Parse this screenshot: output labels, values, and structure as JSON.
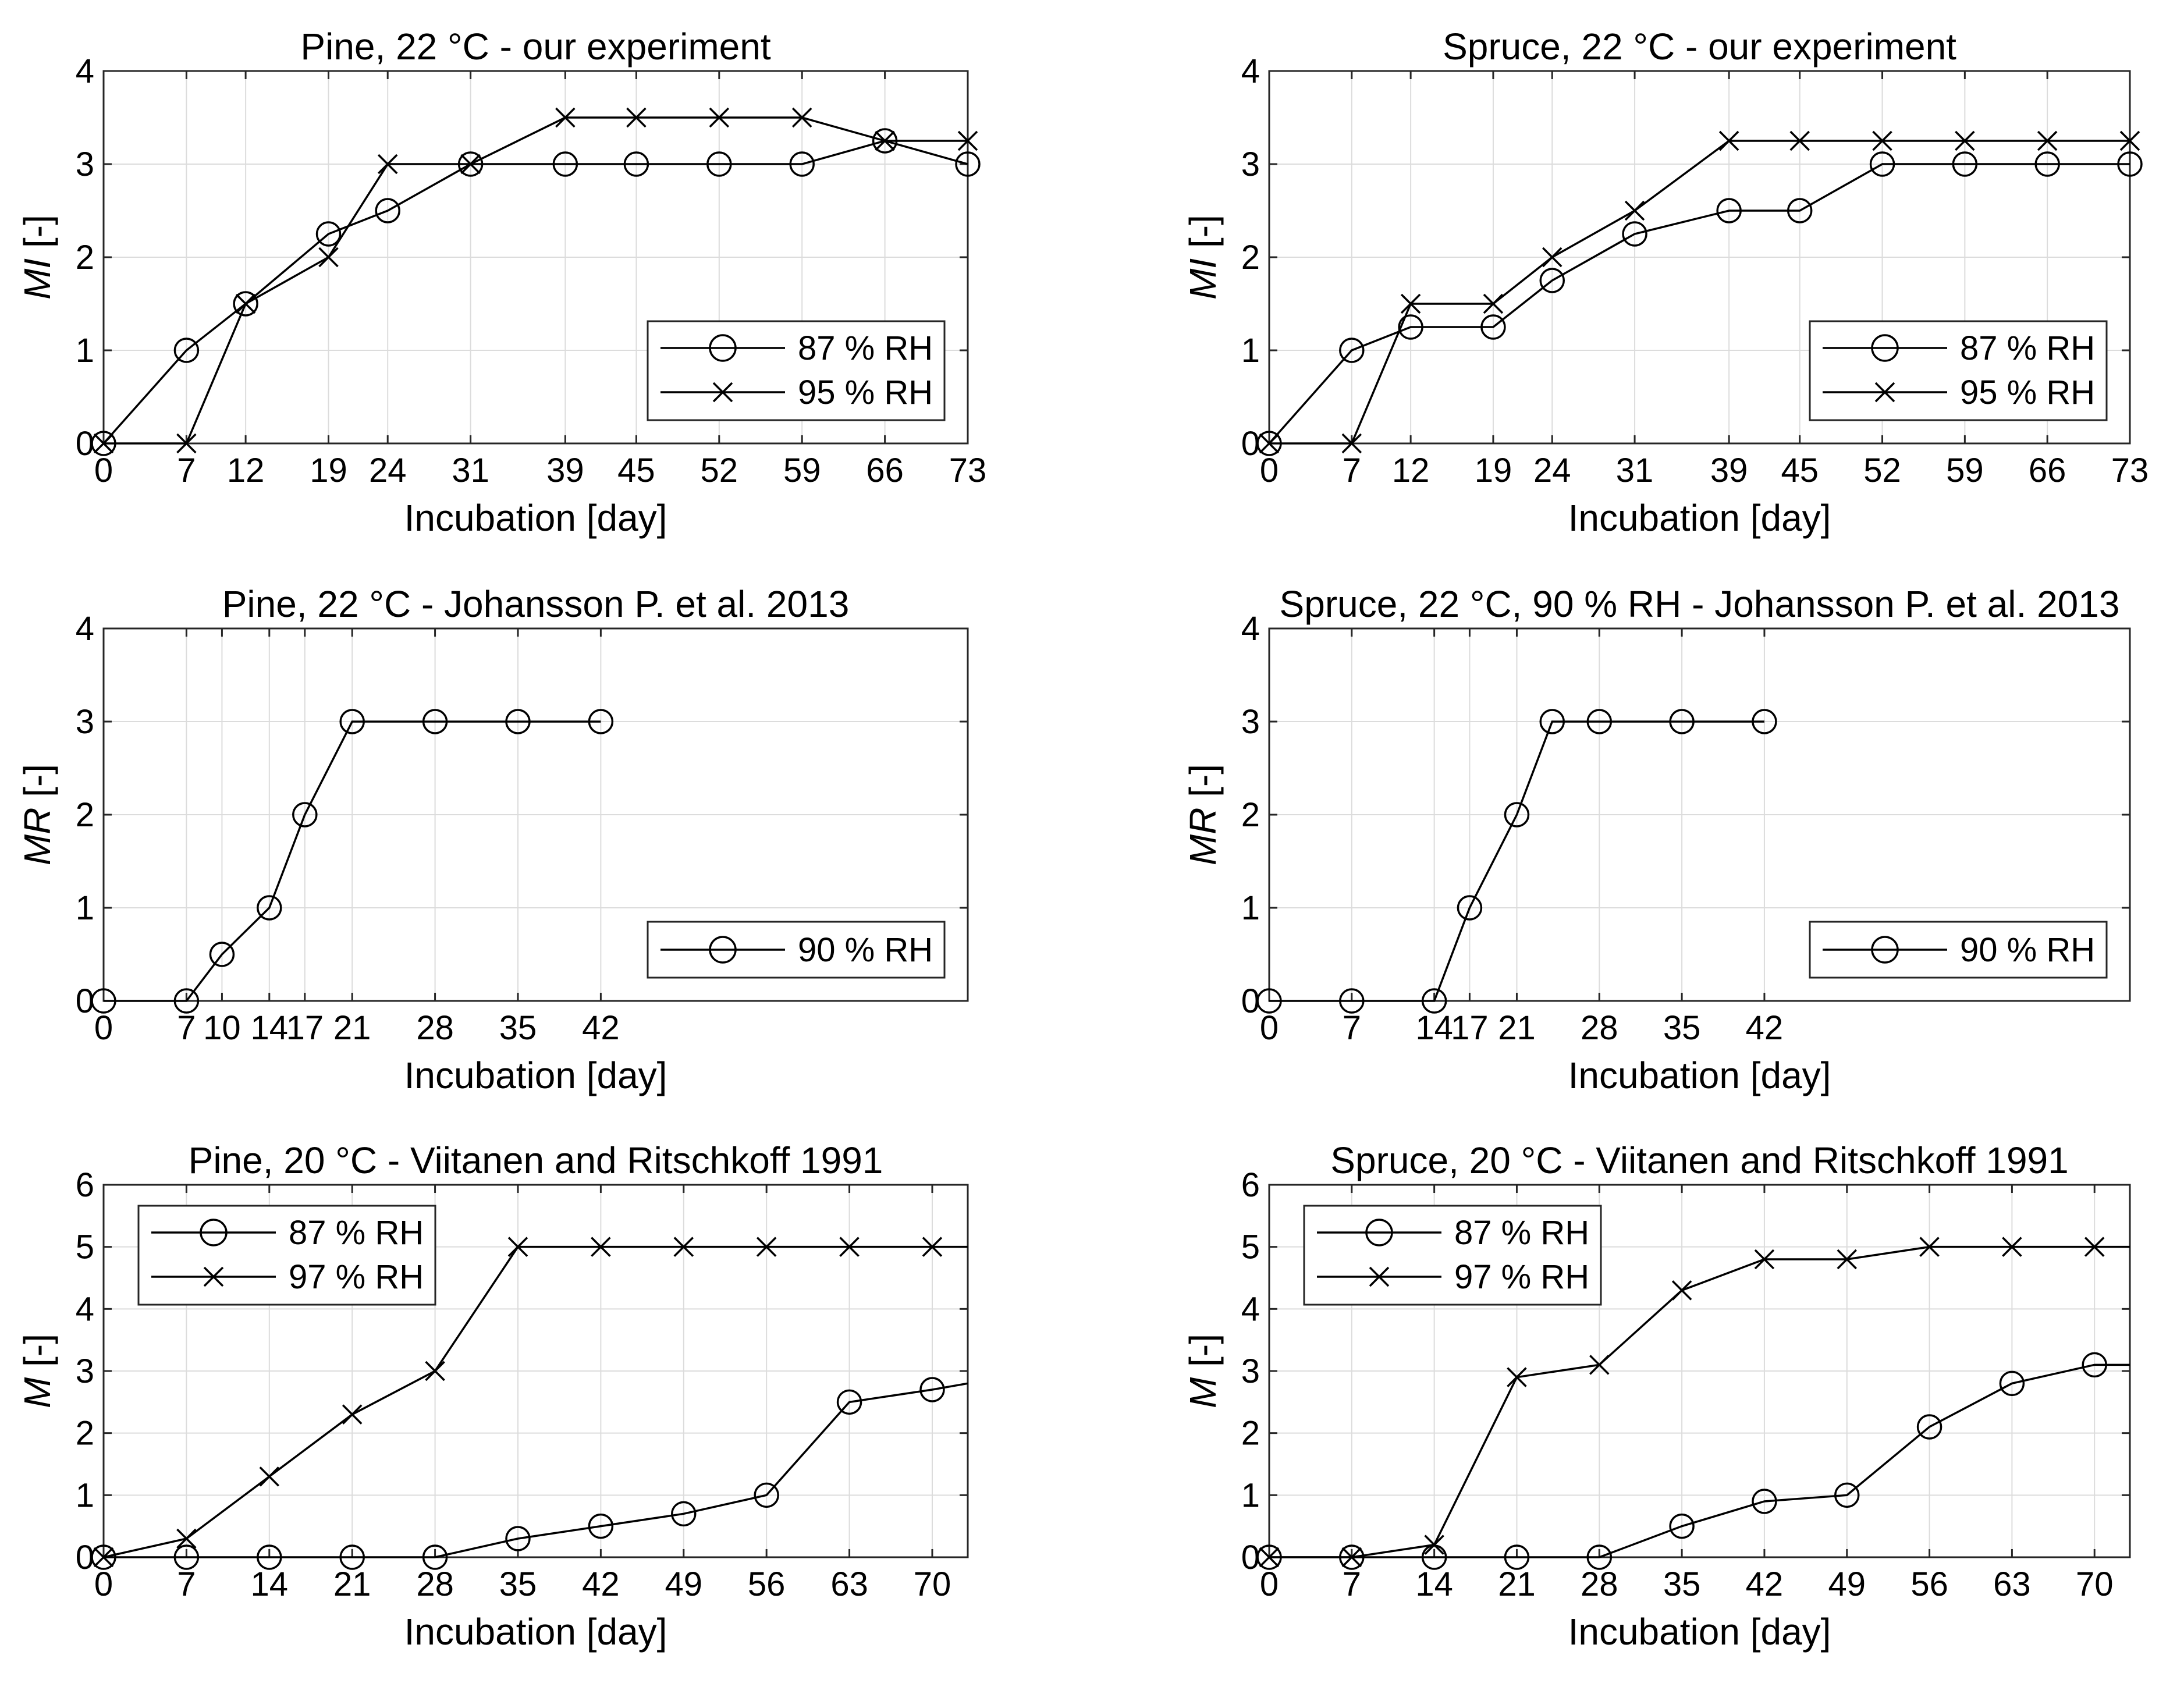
{
  "chart_data": [
    {
      "id": "pine-our",
      "type": "line",
      "title": "Pine, 22 °C - our experiment",
      "xlabel": "Incubation [day]",
      "ylabel_italic": "MI",
      "ylabel_rest": " [-]",
      "xlim": [
        0,
        73
      ],
      "ylim": [
        0,
        4
      ],
      "xticks": [
        0,
        7,
        12,
        19,
        24,
        31,
        39,
        45,
        52,
        59,
        66,
        73
      ],
      "yticks": [
        0,
        1,
        2,
        3,
        4
      ],
      "legend_pos": "bottom-right",
      "series": [
        {
          "name": "87 % RH",
          "marker": "o",
          "x": [
            0,
            7,
            12,
            19,
            24,
            31,
            39,
            45,
            52,
            59,
            66,
            73
          ],
          "y": [
            0,
            1,
            1.5,
            2.25,
            2.5,
            3,
            3,
            3,
            3,
            3,
            3.25,
            3
          ]
        },
        {
          "name": "95 % RH",
          "marker": "x",
          "x": [
            0,
            7,
            12,
            19,
            24,
            31,
            39,
            45,
            52,
            59,
            66,
            73
          ],
          "y": [
            0,
            0,
            1.5,
            2,
            3,
            3,
            3.5,
            3.5,
            3.5,
            3.5,
            3.25,
            3.25
          ]
        }
      ]
    },
    {
      "id": "spruce-our",
      "type": "line",
      "title": "Spruce, 22 °C - our experiment",
      "xlabel": "Incubation [day]",
      "ylabel_italic": "MI",
      "ylabel_rest": " [-]",
      "xlim": [
        0,
        73
      ],
      "ylim": [
        0,
        4
      ],
      "xticks": [
        0,
        7,
        12,
        19,
        24,
        31,
        39,
        45,
        52,
        59,
        66,
        73
      ],
      "yticks": [
        0,
        1,
        2,
        3,
        4
      ],
      "legend_pos": "bottom-right",
      "series": [
        {
          "name": "87 % RH",
          "marker": "o",
          "x": [
            0,
            7,
            12,
            19,
            24,
            31,
            39,
            45,
            52,
            59,
            66,
            73
          ],
          "y": [
            0,
            1,
            1.25,
            1.25,
            1.75,
            2.25,
            2.5,
            2.5,
            3,
            3,
            3,
            3
          ]
        },
        {
          "name": "95 % RH",
          "marker": "x",
          "x": [
            0,
            7,
            12,
            19,
            24,
            31,
            39,
            45,
            52,
            59,
            66,
            73
          ],
          "y": [
            0,
            0,
            1.5,
            1.5,
            2,
            2.5,
            3.25,
            3.25,
            3.25,
            3.25,
            3.25,
            3.25
          ]
        }
      ]
    },
    {
      "id": "pine-johansson",
      "type": "line",
      "title": "Pine, 22 °C - Johansson P. et al. 2013",
      "xlabel": "Incubation [day]",
      "ylabel_italic": "MR",
      "ylabel_rest": " [-]",
      "xlim": [
        0,
        73
      ],
      "ylim": [
        0,
        4
      ],
      "xticks": [
        0,
        7,
        10,
        14,
        17,
        21,
        28,
        35,
        42
      ],
      "yticks": [
        0,
        1,
        2,
        3,
        4
      ],
      "legend_pos": "bottom-right",
      "series": [
        {
          "name": "90 % RH",
          "marker": "o",
          "x": [
            0,
            7,
            10,
            14,
            17,
            21,
            28,
            35,
            42
          ],
          "y": [
            0,
            0,
            0.5,
            1,
            2,
            3,
            3,
            3,
            3
          ]
        }
      ]
    },
    {
      "id": "spruce-johansson",
      "type": "line",
      "title": "Spruce, 22 °C, 90 % RH - Johansson P. et al. 2013",
      "xlabel": "Incubation [day]",
      "ylabel_italic": "MR",
      "ylabel_rest": " [-]",
      "xlim": [
        0,
        73
      ],
      "ylim": [
        0,
        4
      ],
      "xticks": [
        0,
        7,
        14,
        17,
        21,
        28,
        35,
        42
      ],
      "yticks": [
        0,
        1,
        2,
        3,
        4
      ],
      "legend_pos": "bottom-right",
      "series": [
        {
          "name": "90 % RH",
          "marker": "o",
          "x": [
            0,
            7,
            14,
            17,
            21,
            24,
            28,
            35,
            42
          ],
          "y": [
            0,
            0,
            0,
            1,
            2,
            3,
            3,
            3,
            3
          ]
        }
      ]
    },
    {
      "id": "pine-viitanen",
      "type": "line",
      "title": "Pine, 20 °C - Viitanen and Ritschkoff 1991",
      "xlabel": "Incubation [day]",
      "ylabel_italic": "M",
      "ylabel_rest": " [-]",
      "xlim": [
        0,
        73
      ],
      "ylim": [
        0,
        6
      ],
      "xticks": [
        0,
        7,
        14,
        21,
        28,
        35,
        42,
        49,
        56,
        63,
        70
      ],
      "yticks": [
        0,
        1,
        2,
        3,
        4,
        5,
        6
      ],
      "legend_pos": "top-left",
      "series": [
        {
          "name": "87 % RH",
          "marker": "o",
          "x": [
            0,
            7,
            14,
            21,
            28,
            35,
            42,
            49,
            56,
            63,
            70,
            73
          ],
          "y": [
            0,
            0,
            0,
            0,
            0,
            0.3,
            0.5,
            0.7,
            1,
            2.5,
            2.7,
            2.8
          ],
          "markers_to": 11
        },
        {
          "name": "97 % RH",
          "marker": "x",
          "x": [
            0,
            7,
            14,
            21,
            28,
            35,
            42,
            49,
            56,
            63,
            70,
            73
          ],
          "y": [
            0,
            0.3,
            1.3,
            2.3,
            3,
            5,
            5,
            5,
            5,
            5,
            5,
            5
          ],
          "markers_to": 11
        }
      ]
    },
    {
      "id": "spruce-viitanen",
      "type": "line",
      "title": "Spruce, 20 °C  - Viitanen and Ritschkoff 1991",
      "xlabel": "Incubation [day]",
      "ylabel_italic": "M",
      "ylabel_rest": " [-]",
      "xlim": [
        0,
        73
      ],
      "ylim": [
        0,
        6
      ],
      "xticks": [
        0,
        7,
        14,
        21,
        28,
        35,
        42,
        49,
        56,
        63,
        70
      ],
      "yticks": [
        0,
        1,
        2,
        3,
        4,
        5,
        6
      ],
      "legend_pos": "top-left",
      "series": [
        {
          "name": "87 % RH",
          "marker": "o",
          "x": [
            0,
            7,
            14,
            21,
            28,
            35,
            42,
            49,
            56,
            63,
            70,
            73
          ],
          "y": [
            0,
            0,
            0,
            0,
            0,
            0.5,
            0.9,
            1,
            2.1,
            2.8,
            3.1,
            3.1
          ],
          "markers_to": 11
        },
        {
          "name": "97 % RH",
          "marker": "x",
          "x": [
            0,
            7,
            14,
            21,
            28,
            35,
            42,
            49,
            56,
            63,
            70,
            73
          ],
          "y": [
            0,
            0,
            0.2,
            2.9,
            3.1,
            4.3,
            4.8,
            4.8,
            5,
            5,
            5,
            5
          ],
          "markers_to": 11
        }
      ]
    }
  ]
}
